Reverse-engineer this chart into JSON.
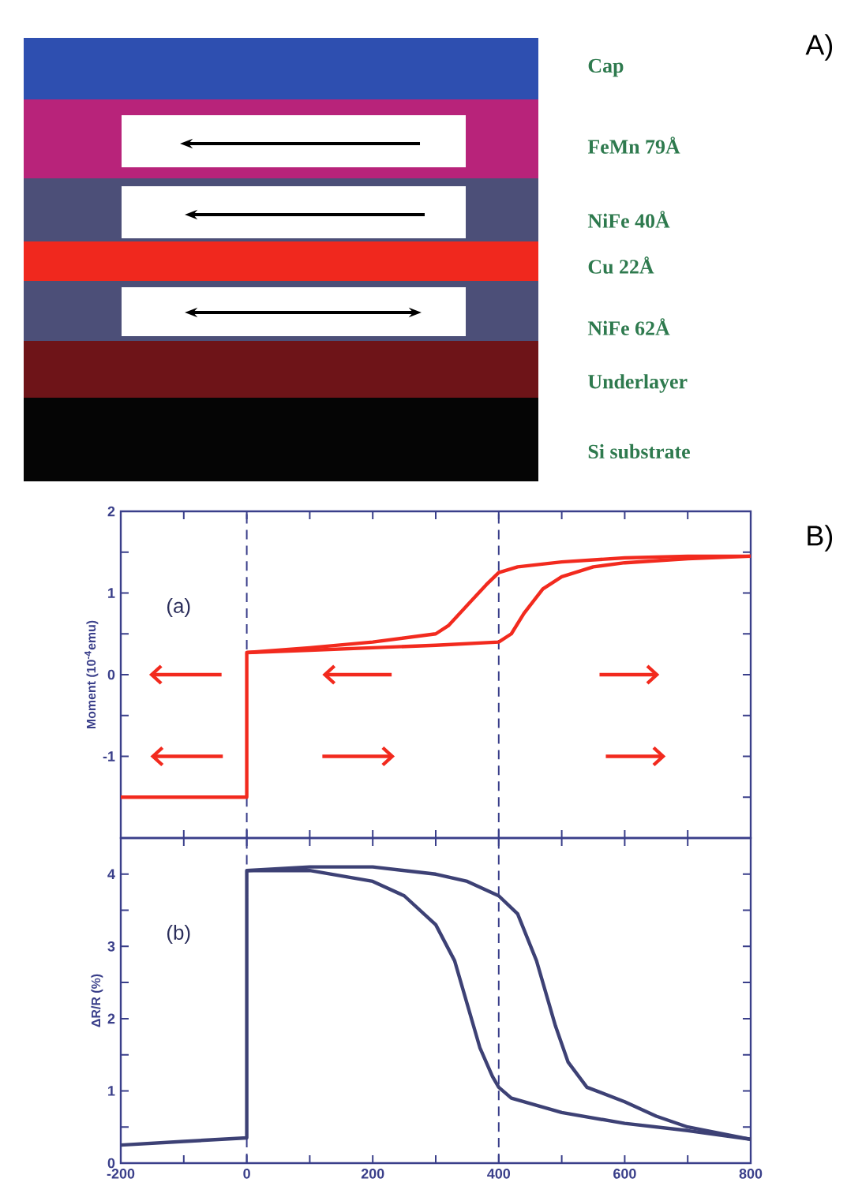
{
  "chart_data": [
    {
      "type": "other",
      "title": "A)",
      "annotations": [
        "Cap",
        "FeMn  79Å",
        "NiFe  40Å",
        "Cu  22Å",
        "NiFe  62Å",
        "Underlayer",
        "Si  substrate"
      ]
    },
    {
      "type": "line",
      "xlim": [
        -200,
        800
      ],
      "xticks": [
        -200,
        {
          "value": -100,
          "label": null
        },
        0,
        {
          "value": 100,
          "label": null
        },
        200,
        {
          "value": 300,
          "label": null
        },
        400,
        {
          "value": 500,
          "label": null
        },
        600,
        {
          "value": 700,
          "label": null
        },
        800
      ],
      "ylim": [
        -2,
        2
      ],
      "yticks": [
        {
          "value": -2,
          "label": null
        },
        {
          "value": -1.5,
          "label": null
        },
        -1,
        {
          "value": -0.5,
          "label": null
        },
        0,
        {
          "value": 0.5,
          "label": null
        },
        1,
        {
          "value": 1.5,
          "label": null
        },
        2
      ],
      "ylabel": "Moment (10$^{-4}$emu)",
      "tick_labels": "y",
      "annotations": [
        "(a)",
        "B)"
      ],
      "ref_lines": [
        {
          "axis": "x",
          "value": 0,
          "color": "#3a3f8a",
          "line_style": "dashed"
        },
        {
          "axis": "x",
          "value": 400,
          "color": "#3a3f8a",
          "line_style": "dashed"
        }
      ],
      "series": [
        {
          "color": "#f22a1e",
          "x": [
            -200,
            -100,
            0,
            0,
            100,
            200,
            300,
            400,
            420,
            440,
            470,
            500,
            550,
            600,
            700,
            800
          ],
          "values": [
            -1.5,
            -1.5,
            -1.5,
            0.27,
            0.3,
            0.33,
            0.36,
            0.4,
            0.5,
            0.75,
            1.05,
            1.2,
            1.32,
            1.37,
            1.42,
            1.45
          ]
        },
        {
          "color": "#f22a1e",
          "x": [
            0,
            100,
            200,
            280,
            300,
            320,
            350,
            380,
            400,
            430,
            500,
            600,
            700,
            800
          ],
          "values": [
            0.27,
            0.33,
            0.4,
            0.48,
            0.5,
            0.6,
            0.85,
            1.1,
            1.25,
            1.32,
            1.38,
            1.43,
            1.45,
            1.45
          ]
        }
      ]
    },
    {
      "type": "line",
      "xlim": [
        -200,
        800
      ],
      "xticks": [
        -200,
        {
          "value": -100,
          "label": null
        },
        0,
        {
          "value": 100,
          "label": null
        },
        200,
        {
          "value": 300,
          "label": null
        },
        400,
        {
          "value": 500,
          "label": null
        },
        600,
        {
          "value": 700,
          "label": null
        },
        800
      ],
      "ylim": [
        0,
        4.5
      ],
      "yticks": [
        0,
        {
          "value": 0.5,
          "label": null
        },
        1,
        {
          "value": 1.5,
          "label": null
        },
        2,
        {
          "value": 2.5,
          "label": null
        },
        3,
        {
          "value": 3.5,
          "label": null
        },
        4
      ],
      "ylabel": "ΔR/R (%)",
      "annotations": [
        "(b)"
      ],
      "ref_lines": [
        {
          "axis": "x",
          "value": 0,
          "color": "#3a3f8a",
          "line_style": "dashed"
        },
        {
          "axis": "x",
          "value": 400,
          "color": "#3a3f8a",
          "line_style": "dashed"
        }
      ],
      "series": [
        {
          "color": "#3d4175",
          "x": [
            -200,
            -100,
            0,
            0,
            100,
            200,
            250,
            300,
            330,
            350,
            370,
            390,
            400,
            420,
            500,
            600,
            700,
            800
          ],
          "values": [
            0.25,
            0.3,
            0.35,
            4.05,
            4.05,
            3.9,
            3.7,
            3.3,
            2.8,
            2.2,
            1.6,
            1.2,
            1.05,
            0.9,
            0.7,
            0.55,
            0.45,
            0.33
          ]
        },
        {
          "color": "#3d4175",
          "x": [
            0,
            100,
            200,
            300,
            350,
            400,
            430,
            460,
            490,
            510,
            540,
            600,
            650,
            700,
            800
          ],
          "values": [
            4.05,
            4.1,
            4.1,
            4.0,
            3.9,
            3.7,
            3.45,
            2.8,
            1.9,
            1.4,
            1.05,
            0.85,
            0.65,
            0.5,
            0.33
          ]
        }
      ]
    }
  ]
}
